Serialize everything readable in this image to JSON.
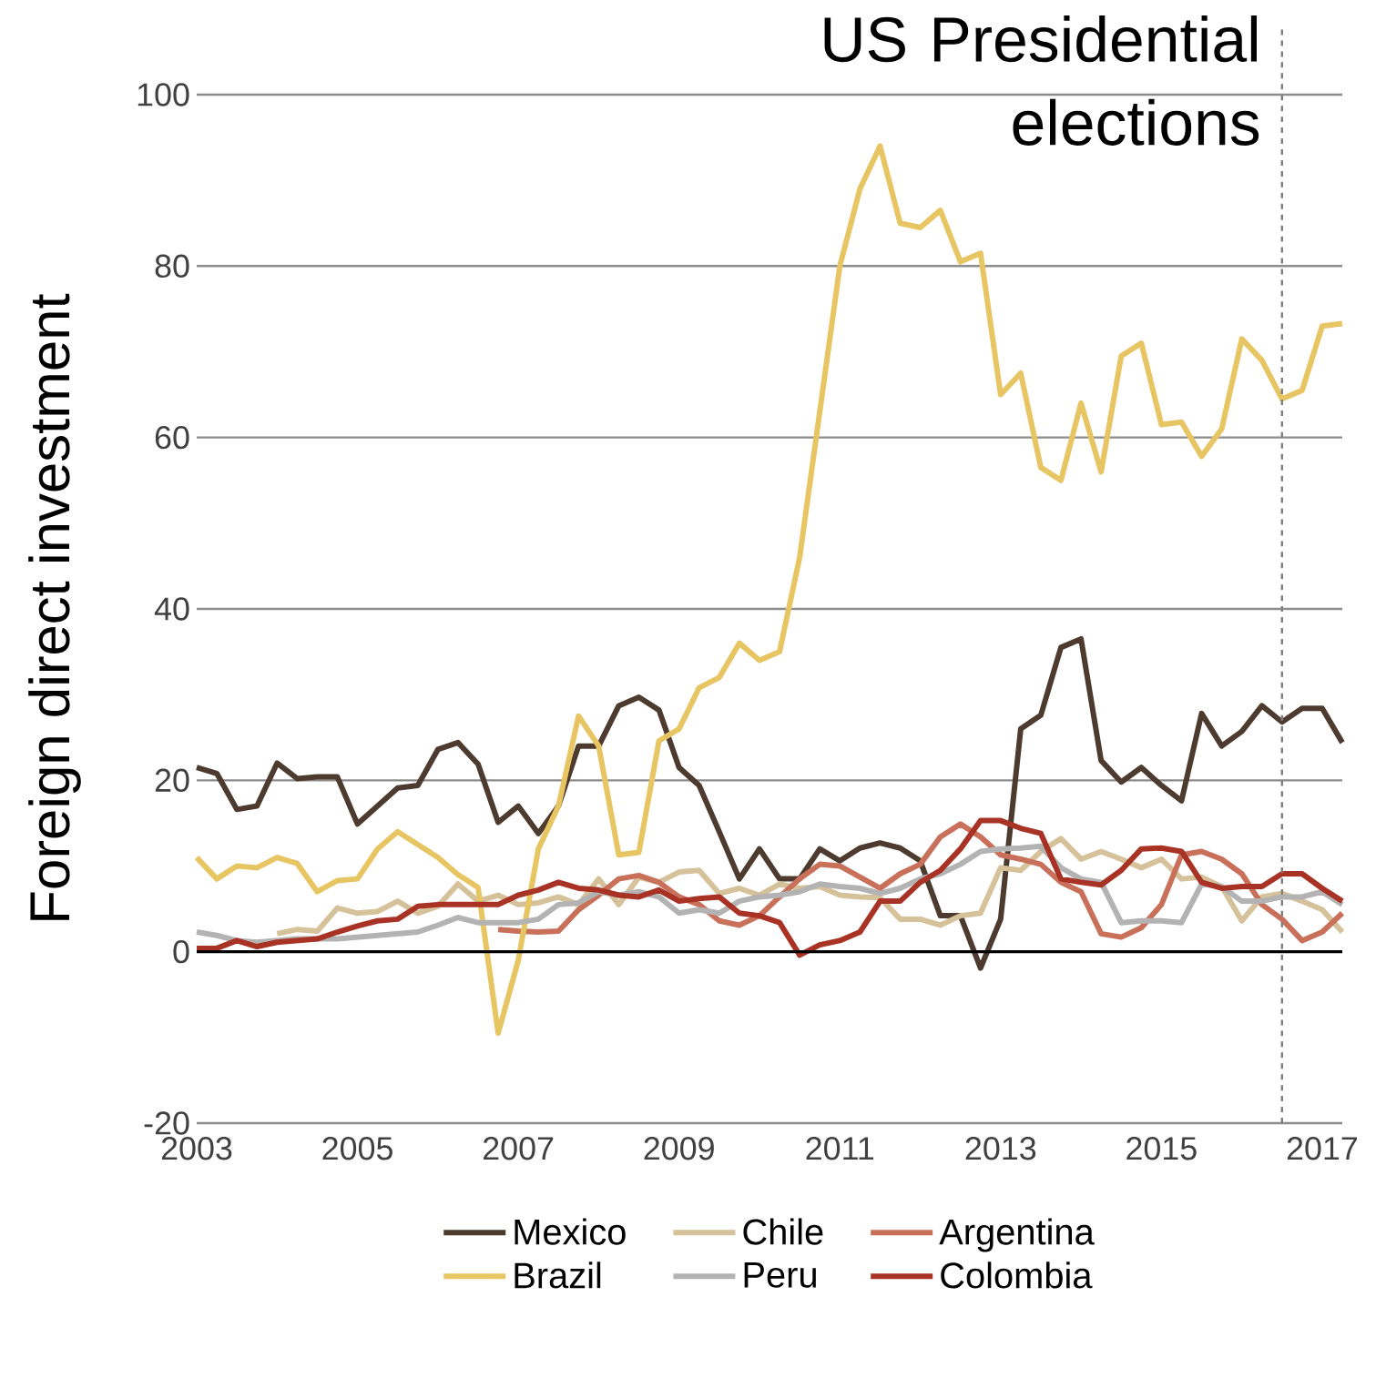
{
  "chart_data": {
    "type": "line",
    "ylabel": "Foreign direct investment",
    "x": [
      2003,
      2003.25,
      2003.5,
      2003.75,
      2004,
      2004.25,
      2004.5,
      2004.75,
      2005,
      2005.25,
      2005.5,
      2005.75,
      2006,
      2006.25,
      2006.5,
      2006.75,
      2007,
      2007.25,
      2007.5,
      2007.75,
      2008,
      2008.25,
      2008.5,
      2008.75,
      2009,
      2009.25,
      2009.5,
      2009.75,
      2010,
      2010.25,
      2010.5,
      2010.75,
      2011,
      2011.25,
      2011.5,
      2011.75,
      2012,
      2012.25,
      2012.5,
      2012.75,
      2013,
      2013.25,
      2013.5,
      2013.75,
      2014,
      2014.25,
      2014.5,
      2014.75,
      2015,
      2015.25,
      2015.5,
      2015.75,
      2016,
      2016.25,
      2016.5,
      2016.75,
      2017,
      2017.25
    ],
    "series": [
      {
        "name": "Mexico",
        "color": "#4d3b2f",
        "values": [
          21.5,
          20.8,
          16.6,
          17,
          22,
          20.2,
          20.4,
          20.4,
          14.9,
          17,
          19.1,
          19.4,
          23.6,
          24.4,
          21.9,
          15.1,
          17,
          13.8,
          17,
          24,
          24,
          28.7,
          29.7,
          28.2,
          21.5,
          19.4,
          14,
          8.5,
          12,
          8.5,
          8.5,
          12,
          10.6,
          12.1,
          12.7,
          12.1,
          10.6,
          4.2,
          4.2,
          -1.9,
          3.8,
          26,
          27.6,
          35.5,
          36.5,
          22.3,
          19.8,
          21.5,
          19.4,
          17.6,
          27.8,
          24,
          25.7,
          28.7,
          26.8,
          28.4,
          28.4,
          24.4
        ]
      },
      {
        "name": "Chile",
        "color": "#d6c29a",
        "values": [
          null,
          null,
          null,
          null,
          2.1,
          2.6,
          2.4,
          5.1,
          4.5,
          4.7,
          5.9,
          4.5,
          5.3,
          7.9,
          5.9,
          6.6,
          5.5,
          5.7,
          6.4,
          5.5,
          8.5,
          5.5,
          8.7,
          8.1,
          9.3,
          9.5,
          6.8,
          7.4,
          6.6,
          7.9,
          7.4,
          7.6,
          6.6,
          6.4,
          6.3,
          3.8,
          3.8,
          3.1,
          4.2,
          4.5,
          9.8,
          9.5,
          11.7,
          13.2,
          10.8,
          11.7,
          10.8,
          9.8,
          10.8,
          8.5,
          8.7,
          7.6,
          3.6,
          6.4,
          6.8,
          5.9,
          4.9,
          2.3
        ]
      },
      {
        "name": "Argentina",
        "color": "#c9705a",
        "values": [
          null,
          null,
          null,
          null,
          null,
          null,
          null,
          null,
          null,
          null,
          null,
          null,
          null,
          null,
          null,
          2.6,
          2.4,
          2.3,
          2.4,
          4.9,
          6.6,
          8.5,
          8.9,
          8.1,
          6.4,
          5.5,
          3.6,
          3.1,
          4.2,
          6.4,
          8.5,
          10.2,
          10,
          8.7,
          7.4,
          9.1,
          10.2,
          13.4,
          14.9,
          13.4,
          11.3,
          10.8,
          10.2,
          8.1,
          7,
          2.1,
          1.7,
          2.8,
          5.5,
          11.3,
          11.7,
          10.8,
          9.1,
          5.5,
          3.8,
          1.3,
          2.3,
          4.5
        ]
      },
      {
        "name": "Brazil",
        "color": "#e8c563",
        "values": [
          11,
          8.5,
          10,
          9.8,
          11,
          10.3,
          7,
          8.3,
          8.5,
          12,
          14,
          12.5,
          11,
          9,
          7.5,
          -9.5,
          -1,
          12,
          17,
          27.5,
          24,
          11.3,
          11.6,
          24.6,
          26,
          30.8,
          32,
          36,
          34,
          35,
          46,
          63,
          80,
          89,
          94,
          85,
          84.5,
          86.5,
          80.5,
          81.5,
          65,
          67.5,
          56.5,
          55,
          64,
          56,
          69.5,
          71,
          61.5,
          61.8,
          57.8,
          61,
          71.5,
          69,
          64.5,
          65.5,
          73,
          73.3
        ]
      },
      {
        "name": "Peru",
        "color": "#b3b3b3",
        "values": [
          2.3,
          1.9,
          1.3,
          1.1,
          1.3,
          1.5,
          1.5,
          1.5,
          1.7,
          1.9,
          2.1,
          2.3,
          3.1,
          4,
          3.4,
          3.4,
          3.4,
          3.8,
          5.5,
          5.7,
          7,
          6.6,
          7,
          6.4,
          4.5,
          4.9,
          4.5,
          5.9,
          6.4,
          6.6,
          7,
          7.9,
          7.6,
          7.4,
          6.8,
          7.4,
          8.5,
          9.1,
          10.2,
          11.7,
          12,
          12.1,
          12.3,
          9.8,
          8.5,
          8.1,
          3.4,
          3.6,
          3.6,
          3.4,
          7.9,
          7.6,
          5.9,
          5.9,
          6.4,
          6.4,
          7,
          5.5
        ]
      },
      {
        "name": "Colombia",
        "color": "#a83224",
        "values": [
          0.4,
          0.4,
          1.3,
          0.6,
          1.1,
          1.3,
          1.5,
          2.3,
          3,
          3.6,
          3.8,
          5.3,
          5.5,
          5.5,
          5.5,
          5.5,
          6.6,
          7.2,
          8.1,
          7.4,
          7.2,
          6.6,
          6.4,
          7.2,
          5.9,
          6.2,
          6.4,
          4.5,
          4.2,
          3.4,
          -0.4,
          0.8,
          1.3,
          2.3,
          5.9,
          5.9,
          8.1,
          9.5,
          12,
          15.3,
          15.3,
          14.4,
          13.8,
          8.5,
          8.1,
          7.8,
          9.5,
          12,
          12.1,
          11.7,
          8.1,
          7.4,
          7.6,
          7.6,
          9.1,
          9.1,
          7.4,
          5.9
        ]
      }
    ],
    "xlim": [
      2003,
      2017.25
    ],
    "xticks": [
      2003,
      2005,
      2007,
      2009,
      2011,
      2013,
      2015,
      2017
    ],
    "ylim": [
      -20,
      100
    ],
    "yticks": [
      -20,
      0,
      20,
      40,
      60,
      80,
      100
    ],
    "grid": "y",
    "legend": "bottom",
    "ref_lines": [
      {
        "axis": "y",
        "value": 0,
        "color": "#000000",
        "line_style": "solid"
      },
      {
        "axis": "x",
        "value": 2016.5,
        "label": "US Presidential elections",
        "color": "#7f7f7f",
        "line_style": "dashed"
      }
    ]
  }
}
